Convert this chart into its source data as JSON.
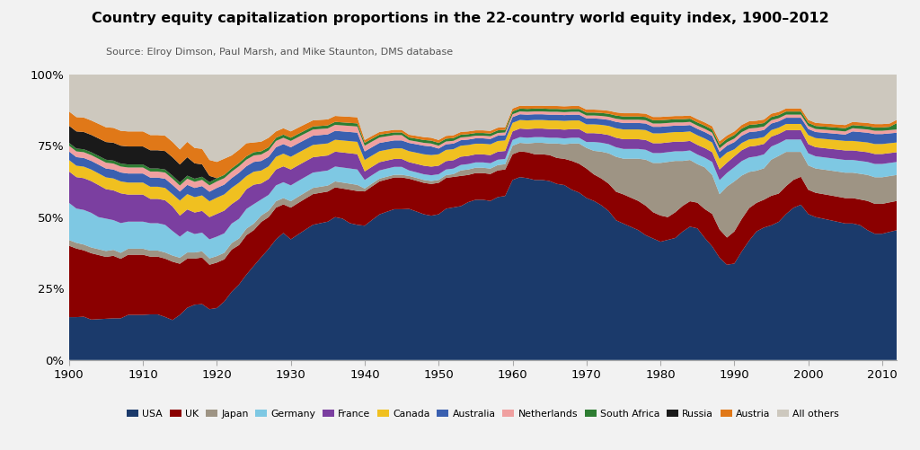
{
  "title": "Country equity capitalization proportions in the 22-country world equity index, 1900–2012",
  "source": "Source: Elroy Dimson, Paul Marsh, and Mike Staunton, DMS database",
  "years": [
    1900,
    1901,
    1902,
    1903,
    1904,
    1905,
    1906,
    1907,
    1908,
    1909,
    1910,
    1911,
    1912,
    1913,
    1914,
    1915,
    1916,
    1917,
    1918,
    1919,
    1920,
    1921,
    1922,
    1923,
    1924,
    1925,
    1926,
    1927,
    1928,
    1929,
    1930,
    1931,
    1932,
    1933,
    1934,
    1935,
    1936,
    1937,
    1938,
    1939,
    1940,
    1941,
    1942,
    1943,
    1944,
    1945,
    1946,
    1947,
    1948,
    1949,
    1950,
    1951,
    1952,
    1953,
    1954,
    1955,
    1956,
    1957,
    1958,
    1959,
    1960,
    1961,
    1962,
    1963,
    1964,
    1965,
    1966,
    1967,
    1968,
    1969,
    1970,
    1971,
    1972,
    1973,
    1974,
    1975,
    1976,
    1977,
    1978,
    1979,
    1980,
    1981,
    1982,
    1983,
    1984,
    1985,
    1986,
    1987,
    1988,
    1989,
    1990,
    1991,
    1992,
    1993,
    1994,
    1995,
    1996,
    1997,
    1998,
    1999,
    2000,
    2001,
    2002,
    2003,
    2004,
    2005,
    2006,
    2007,
    2008,
    2009,
    2010,
    2011,
    2012
  ],
  "series": {
    "USA": [
      15,
      15,
      15,
      14,
      14,
      14,
      14,
      14,
      15,
      15,
      15,
      15,
      15,
      14,
      13,
      15,
      17,
      18,
      18,
      16,
      16,
      18,
      21,
      23,
      26,
      29,
      32,
      35,
      38,
      40,
      38,
      40,
      42,
      44,
      45,
      46,
      48,
      47,
      45,
      44,
      47,
      50,
      53,
      55,
      57,
      57,
      55,
      53,
      51,
      50,
      51,
      54,
      55,
      56,
      58,
      60,
      60,
      59,
      61,
      62,
      63,
      64,
      63,
      63,
      63,
      62,
      61,
      60,
      59,
      58,
      55,
      54,
      52,
      49,
      44,
      42,
      41,
      40,
      38,
      37,
      36,
      37,
      38,
      40,
      42,
      41,
      38,
      35,
      29,
      28,
      27,
      30,
      33,
      36,
      38,
      41,
      44,
      47,
      49,
      50,
      48,
      47,
      46,
      45,
      44,
      43,
      43,
      42,
      40,
      38,
      38,
      39,
      40
    ],
    "UK": [
      25,
      24,
      23,
      23,
      22,
      21,
      21,
      20,
      20,
      20,
      20,
      19,
      19,
      19,
      19,
      17,
      16,
      15,
      15,
      14,
      14,
      13,
      13,
      12,
      12,
      11,
      11,
      10,
      10,
      9,
      10,
      10,
      10,
      10,
      10,
      10,
      10,
      10,
      11,
      11,
      12,
      12,
      12,
      12,
      12,
      12,
      11,
      11,
      11,
      11,
      11,
      11,
      11,
      11,
      10,
      10,
      10,
      10,
      10,
      10,
      9,
      9,
      9,
      9,
      9,
      9,
      9,
      9,
      10,
      10,
      10,
      9,
      9,
      9,
      9,
      9,
      9,
      9,
      9,
      8,
      8,
      7,
      8,
      8,
      8,
      8,
      9,
      10,
      8,
      8,
      9,
      9,
      9,
      8,
      8,
      9,
      9,
      9,
      9,
      9,
      8,
      8,
      8,
      8,
      8,
      8,
      8,
      8,
      9,
      9,
      9,
      9,
      9
    ],
    "Japan": [
      2,
      2,
      2,
      2,
      2,
      2,
      2,
      2,
      2,
      2,
      2,
      2,
      2,
      2,
      2,
      2,
      2,
      2,
      2,
      2,
      2,
      2,
      2,
      2,
      2,
      2,
      2,
      2,
      2,
      2,
      2,
      2,
      2,
      2,
      2,
      2,
      2,
      2,
      2,
      2,
      1,
      1,
      1,
      1,
      1,
      1,
      1,
      1,
      1,
      1,
      1,
      1,
      1,
      2,
      2,
      2,
      2,
      2,
      2,
      2,
      3,
      3,
      3,
      4,
      4,
      4,
      5,
      5,
      6,
      7,
      7,
      8,
      9,
      10,
      11,
      11,
      12,
      13,
      14,
      15,
      16,
      17,
      16,
      14,
      13,
      12,
      13,
      12,
      10,
      15,
      14,
      12,
      10,
      9,
      9,
      11,
      12,
      11,
      9,
      8,
      8,
      8,
      8,
      8,
      8,
      8,
      8,
      8,
      8,
      8,
      8,
      8,
      8
    ],
    "Germany": [
      13,
      12,
      12,
      12,
      11,
      11,
      10,
      10,
      9,
      9,
      9,
      9,
      9,
      9,
      8,
      7,
      7,
      6,
      6,
      6,
      6,
      6,
      6,
      6,
      6,
      6,
      5,
      5,
      5,
      5,
      5,
      5,
      5,
      5,
      5,
      5,
      5,
      5,
      5,
      5,
      3,
      3,
      3,
      3,
      3,
      3,
      2,
      2,
      2,
      2,
      2,
      2,
      2,
      2,
      2,
      2,
      2,
      2,
      2,
      2,
      2,
      2,
      2,
      2,
      2,
      2,
      2,
      2,
      2,
      2,
      2,
      3,
      3,
      3,
      3,
      3,
      3,
      3,
      3,
      3,
      3,
      3,
      3,
      3,
      3,
      3,
      3,
      4,
      4,
      4,
      4,
      4,
      4,
      4,
      4,
      4,
      4,
      4,
      4,
      4,
      4,
      4,
      4,
      4,
      4,
      4,
      4,
      4,
      4,
      4,
      4,
      4,
      4
    ],
    "France": [
      11,
      11,
      11,
      11,
      11,
      10,
      10,
      10,
      9,
      9,
      9,
      8,
      8,
      8,
      8,
      7,
      7,
      7,
      7,
      7,
      7,
      7,
      6,
      6,
      6,
      6,
      5,
      5,
      5,
      5,
      5,
      5,
      5,
      5,
      5,
      5,
      5,
      5,
      5,
      5,
      3,
      3,
      3,
      3,
      3,
      3,
      3,
      3,
      3,
      3,
      3,
      3,
      3,
      3,
      3,
      3,
      3,
      3,
      3,
      3,
      3,
      3,
      3,
      3,
      3,
      3,
      3,
      3,
      3,
      3,
      3,
      3,
      3,
      3,
      3,
      3,
      3,
      3,
      3,
      3,
      3,
      3,
      3,
      3,
      3,
      3,
      3,
      3,
      3,
      3,
      3,
      3,
      3,
      3,
      3,
      3,
      3,
      3,
      3,
      3,
      3,
      3,
      3,
      3,
      3,
      3,
      3,
      3,
      3,
      3,
      3,
      3,
      3
    ],
    "Canada": [
      4,
      4,
      4,
      4,
      4,
      4,
      4,
      4,
      4,
      4,
      4,
      4,
      4,
      4,
      4,
      5,
      5,
      5,
      5,
      5,
      5,
      5,
      5,
      5,
      4,
      4,
      4,
      4,
      4,
      4,
      4,
      4,
      4,
      4,
      4,
      4,
      4,
      4,
      4,
      4,
      4,
      4,
      4,
      4,
      4,
      4,
      4,
      4,
      4,
      4,
      4,
      4,
      4,
      4,
      4,
      4,
      4,
      4,
      4,
      4,
      3,
      3,
      3,
      3,
      3,
      3,
      3,
      3,
      3,
      3,
      3,
      3,
      3,
      3,
      3,
      3,
      3,
      3,
      3,
      3,
      3,
      3,
      3,
      3,
      3,
      3,
      3,
      3,
      3,
      3,
      2,
      2,
      2,
      2,
      2,
      2,
      2,
      2,
      2,
      2,
      3,
      3,
      3,
      3,
      3,
      3,
      3,
      3,
      3,
      3,
      3,
      3,
      3
    ],
    "Australia": [
      3,
      3,
      3,
      3,
      3,
      3,
      3,
      3,
      3,
      3,
      3,
      3,
      3,
      3,
      3,
      3,
      3,
      3,
      3,
      3,
      3,
      3,
      3,
      3,
      3,
      3,
      3,
      3,
      3,
      3,
      3,
      3,
      3,
      3,
      3,
      3,
      3,
      3,
      3,
      3,
      3,
      3,
      3,
      3,
      3,
      3,
      3,
      3,
      3,
      3,
      2,
      2,
      2,
      2,
      2,
      2,
      2,
      2,
      2,
      2,
      2,
      2,
      2,
      2,
      2,
      2,
      2,
      2,
      2,
      2,
      2,
      2,
      2,
      2,
      2,
      2,
      2,
      2,
      2,
      2,
      2,
      2,
      2,
      2,
      2,
      2,
      2,
      2,
      2,
      2,
      2,
      2,
      2,
      2,
      2,
      2,
      2,
      2,
      2,
      2,
      2,
      2,
      2,
      2,
      2,
      2,
      3,
      3,
      3,
      3,
      3,
      3,
      3
    ],
    "Netherlands": [
      2,
      2,
      2,
      2,
      2,
      2,
      2,
      2,
      2,
      2,
      2,
      2,
      2,
      2,
      2,
      2,
      2,
      2,
      2,
      2,
      2,
      2,
      2,
      2,
      2,
      2,
      2,
      2,
      2,
      2,
      2,
      2,
      2,
      2,
      2,
      2,
      2,
      2,
      2,
      2,
      2,
      2,
      2,
      2,
      2,
      2,
      1,
      1,
      1,
      1,
      1,
      1,
      1,
      1,
      1,
      1,
      1,
      1,
      1,
      1,
      1,
      1,
      1,
      1,
      1,
      1,
      1,
      1,
      1,
      1,
      1,
      1,
      1,
      1,
      1,
      1,
      1,
      1,
      1,
      1,
      1,
      1,
      1,
      1,
      1,
      1,
      1,
      1,
      1,
      1,
      1,
      1,
      1,
      1,
      1,
      1,
      1,
      1,
      1,
      1,
      1,
      1,
      1,
      1,
      1,
      1,
      1,
      1,
      1,
      1,
      1,
      1,
      1
    ],
    "South Africa": [
      1,
      1,
      1,
      1,
      1,
      1,
      1,
      1,
      1,
      1,
      1,
      1,
      1,
      1,
      1,
      1,
      1,
      1,
      1,
      1,
      1,
      1,
      1,
      1,
      1,
      1,
      1,
      1,
      1,
      1,
      1,
      1,
      1,
      1,
      1,
      1,
      1,
      1,
      1,
      1,
      1,
      1,
      1,
      1,
      1,
      1,
      1,
      1,
      1,
      1,
      1,
      1,
      1,
      1,
      1,
      1,
      1,
      1,
      1,
      1,
      1,
      1,
      1,
      1,
      1,
      1,
      1,
      1,
      1,
      1,
      1,
      1,
      1,
      1,
      1,
      1,
      1,
      1,
      1,
      1,
      1,
      1,
      1,
      1,
      1,
      1,
      1,
      1,
      1,
      1,
      1,
      1,
      1,
      1,
      1,
      1,
      1,
      1,
      1,
      1,
      1,
      1,
      1,
      1,
      1,
      1,
      1,
      1,
      1,
      1,
      1,
      1,
      2
    ],
    "Russia": [
      6,
      6,
      6,
      6,
      6,
      6,
      6,
      6,
      6,
      6,
      6,
      6,
      6,
      6,
      6,
      6,
      6,
      5,
      4,
      2,
      0,
      0,
      0,
      0,
      0,
      0,
      0,
      0,
      0,
      0,
      0,
      0,
      0,
      0,
      0,
      0,
      0,
      0,
      0,
      0,
      0,
      0,
      0,
      0,
      0,
      0,
      0,
      0,
      0,
      0,
      0,
      0,
      0,
      0,
      0,
      0,
      0,
      0,
      0,
      0,
      0,
      0,
      0,
      0,
      0,
      0,
      0,
      0,
      0,
      0,
      0,
      0,
      0,
      0,
      0,
      0,
      0,
      0,
      0,
      0,
      0,
      0,
      0,
      0,
      0,
      0,
      0,
      0,
      0,
      0,
      0,
      0,
      0,
      0,
      0,
      0,
      0,
      0,
      0,
      0,
      0,
      0,
      0,
      0,
      0,
      0,
      0,
      0,
      0,
      0,
      0,
      0,
      0
    ],
    "Austria": [
      5,
      5,
      5,
      5,
      5,
      5,
      5,
      5,
      5,
      5,
      5,
      5,
      5,
      5,
      5,
      5,
      5,
      5,
      5,
      5,
      5,
      5,
      4,
      4,
      4,
      3,
      3,
      3,
      2,
      2,
      2,
      2,
      2,
      2,
      2,
      2,
      2,
      2,
      2,
      2,
      1,
      1,
      1,
      1,
      1,
      1,
      1,
      1,
      1,
      1,
      1,
      1,
      1,
      1,
      1,
      1,
      1,
      1,
      1,
      1,
      1,
      1,
      1,
      1,
      1,
      1,
      1,
      1,
      1,
      1,
      1,
      1,
      1,
      1,
      1,
      1,
      1,
      1,
      1,
      1,
      1,
      1,
      1,
      1,
      1,
      1,
      1,
      1,
      1,
      1,
      1,
      1,
      1,
      1,
      1,
      1,
      1,
      1,
      1,
      1,
      1,
      1,
      1,
      1,
      1,
      1,
      1,
      1,
      1,
      1,
      1,
      1,
      1
    ],
    "All others": [
      13,
      15,
      15,
      16,
      17,
      18,
      18,
      19,
      19,
      19,
      19,
      20,
      20,
      20,
      22,
      25,
      22,
      24,
      24,
      27,
      27,
      26,
      25,
      23,
      21,
      21,
      21,
      20,
      18,
      17,
      18,
      17,
      16,
      15,
      15,
      15,
      14,
      14,
      14,
      14,
      23,
      22,
      21,
      21,
      21,
      21,
      22,
      22,
      22,
      22,
      23,
      22,
      22,
      21,
      21,
      21,
      21,
      21,
      20,
      20,
      12,
      11,
      11,
      11,
      11,
      11,
      11,
      11,
      11,
      11,
      12,
      12,
      12,
      12,
      12,
      12,
      12,
      12,
      12,
      13,
      13,
      13,
      13,
      13,
      13,
      14,
      15,
      16,
      19,
      18,
      16,
      14,
      13,
      13,
      13,
      12,
      12,
      11,
      11,
      11,
      15,
      16,
      16,
      16,
      16,
      16,
      15,
      15,
      15,
      15,
      15,
      15,
      14
    ]
  },
  "colors": {
    "USA": "#1b3a6b",
    "UK": "#8b0000",
    "Japan": "#9e9484",
    "Germany": "#7ec8e3",
    "France": "#7b3fa0",
    "Canada": "#f0c020",
    "Australia": "#3a60b0",
    "Netherlands": "#f0a0a0",
    "South Africa": "#2e7d32",
    "Russia": "#1a1a1a",
    "Austria": "#e07818",
    "All others": "#cdc8be"
  },
  "legend_order": [
    "USA",
    "UK",
    "Japan",
    "Germany",
    "France",
    "Canada",
    "Australia",
    "Netherlands",
    "South Africa",
    "Russia",
    "Austria",
    "All others"
  ],
  "yticks": [
    0,
    0.25,
    0.5,
    0.75,
    1.0
  ],
  "ytick_labels": [
    "0%",
    "25%",
    "50%",
    "75%",
    "100%"
  ],
  "bg_color": "#f2f2f2",
  "plot_bg": "#eeebe6"
}
